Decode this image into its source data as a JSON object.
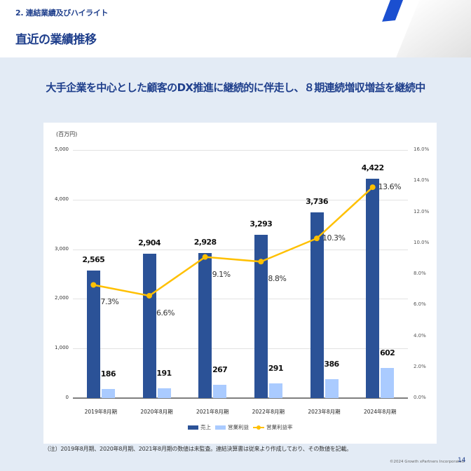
{
  "header": {
    "section": "2. 連結業績及びハイライト",
    "title": "直近の業績推移"
  },
  "headline": "大手企業を中心とした顧客のDX推進に継続的に伴走し、８期連続増収増益を継続中",
  "colors": {
    "revenue": "#2b5297",
    "operating_profit": "#aacbff",
    "margin_line": "#ffc000",
    "title": "#1f3f8c",
    "background": "#e3ebf5"
  },
  "chart_data": {
    "type": "bar",
    "title": "",
    "unit_label": "(百万円)",
    "xlabel": "",
    "ylabel": "百万円",
    "y2label": "%",
    "ylim": [
      0,
      5000
    ],
    "y2lim": [
      0,
      16
    ],
    "y_ticks": [
      "0",
      "1,000",
      "2,000",
      "3,000",
      "4,000",
      "5,000"
    ],
    "y2_ticks": [
      "0.0%",
      "2.0%",
      "4.0%",
      "6.0%",
      "8.0%",
      "10.0%",
      "12.0%",
      "14.0%",
      "16.0%"
    ],
    "categories": [
      "2019年8月期",
      "2020年8月期",
      "2021年8月期",
      "2022年8月期",
      "2023年8月期",
      "2024年8月期"
    ],
    "series": [
      {
        "name": "売上",
        "type": "bar",
        "axis": "left",
        "values": [
          2565,
          2904,
          2928,
          3293,
          3736,
          4422
        ],
        "labels": [
          "2,565",
          "2,904",
          "2,928",
          "3,293",
          "3,736",
          "4,422"
        ]
      },
      {
        "name": "営業利益",
        "type": "bar",
        "axis": "left",
        "values": [
          186,
          191,
          267,
          291,
          386,
          602
        ],
        "labels": [
          "186",
          "191",
          "267",
          "291",
          "386",
          "602"
        ]
      },
      {
        "name": "営業利益率",
        "type": "line",
        "axis": "right",
        "values": [
          7.3,
          6.6,
          9.1,
          8.8,
          10.3,
          13.6
        ],
        "labels": [
          "7.3%",
          "6.6%",
          "9.1%",
          "8.8%",
          "10.3%",
          "13.6%"
        ]
      }
    ],
    "legend": [
      "売上",
      "営業利益",
      "営業利益率"
    ],
    "legend_position": "bottom",
    "grid": true
  },
  "footer": {
    "note": "（注）2019年8月期、2020年8月期、2021年8月期の数値は未監査。連結決算書は従来より作成しており、その数値を記載。",
    "copyright": "©2024 Growth xPartners Incorporated.",
    "page_number": "14"
  }
}
